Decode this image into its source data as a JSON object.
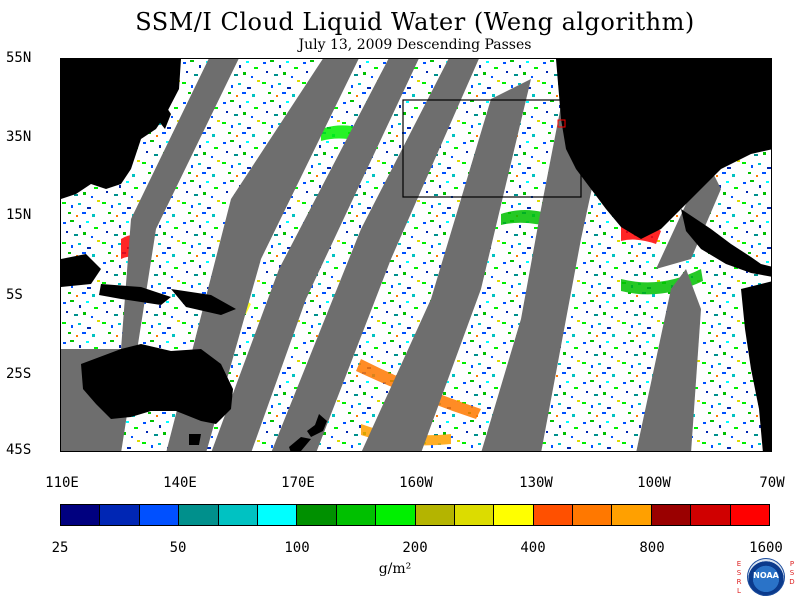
{
  "header": {
    "title": "SSM/I Cloud Liquid Water (Weng algorithm)",
    "subtitle": "July 13, 2009  Descending Passes"
  },
  "map": {
    "lat_ticks": [
      "55N",
      "35N",
      "15N",
      "5S",
      "25S",
      "45S"
    ],
    "lon_ticks": [
      "110E",
      "140E",
      "170E",
      "160W",
      "130W",
      "100W",
      "70W"
    ],
    "colors": {
      "land": "#000000",
      "no_data_gap": "#6e6e6e",
      "clear": "#ffffff",
      "box": "#000000",
      "marker": "#ff0000"
    }
  },
  "colorbar": {
    "labels": [
      "25",
      "50",
      "100",
      "200",
      "400",
      "800",
      "1600"
    ],
    "colors": [
      "#00007f",
      "#0026b4",
      "#0050ff",
      "#00908c",
      "#00c2c2",
      "#00ffff",
      "#009000",
      "#00c000",
      "#00f000",
      "#b4b400",
      "#dcdc00",
      "#ffff00",
      "#ff5000",
      "#ff7800",
      "#ffa000",
      "#9a0000",
      "#d00000",
      "#ff0000"
    ],
    "units": "g/m²"
  },
  "logo": {
    "left_letters": [
      "E",
      "S",
      "R",
      "L"
    ],
    "right_letters": [
      "P",
      "S",
      "D"
    ],
    "agency": "NOAA"
  }
}
